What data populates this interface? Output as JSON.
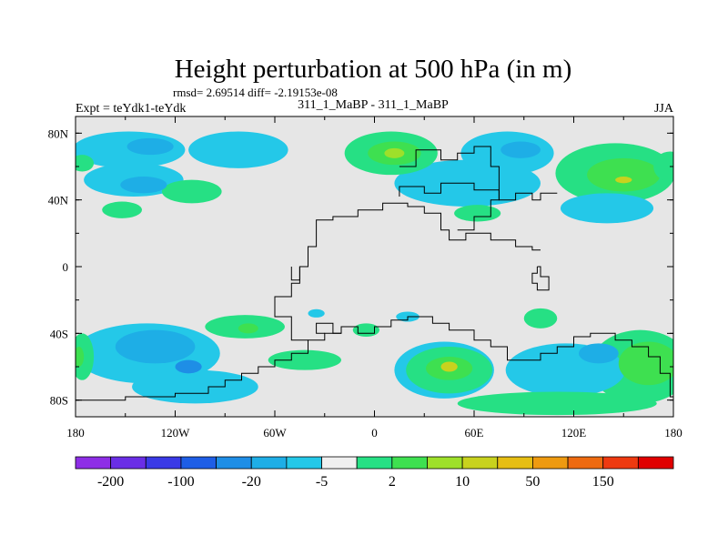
{
  "chart_data": {
    "type": "heatmap",
    "title": "Height perturbation at 500 hPa (in m)",
    "subtitle": "rmsd= 2.69514 diff= -2.19153e-08",
    "left_label": "Expt = teYdk1-teYdk",
    "center_label": "311_1_MaBP - 311_1_MaBP",
    "right_label": "JJA",
    "x_ticks": [
      {
        "value": -180,
        "label": "180"
      },
      {
        "value": -120,
        "label": "120W"
      },
      {
        "value": -60,
        "label": "60W"
      },
      {
        "value": 0,
        "label": "0"
      },
      {
        "value": 60,
        "label": "60E"
      },
      {
        "value": 120,
        "label": "120E"
      },
      {
        "value": 180,
        "label": "180"
      }
    ],
    "y_ticks": [
      {
        "value": 80,
        "label": "80N"
      },
      {
        "value": 40,
        "label": "40N"
      },
      {
        "value": 0,
        "label": "0"
      },
      {
        "value": -40,
        "label": "40S"
      },
      {
        "value": -80,
        "label": "80S"
      }
    ],
    "xlim": [
      -180,
      180
    ],
    "ylim": [
      -90,
      90
    ],
    "background_color": "#e6e6e6",
    "colorbar": {
      "colors": [
        "#8e2ee6",
        "#6a2ee6",
        "#3a3ae6",
        "#1e5ee6",
        "#1e8ee6",
        "#1eaee6",
        "#24c8e8",
        "#f0f0f0",
        "#26e084",
        "#3ee050",
        "#9ee02a",
        "#c8d21e",
        "#e6be14",
        "#ee9a10",
        "#ee6a10",
        "#ee3a10",
        "#e00000"
      ],
      "labels": [
        {
          "boundary": 1,
          "text": "-200"
        },
        {
          "boundary": 3,
          "text": "-100"
        },
        {
          "boundary": 5,
          "text": "-20"
        },
        {
          "boundary": 7,
          "text": "-5"
        },
        {
          "boundary": 9,
          "text": "2"
        },
        {
          "boundary": 11,
          "text": "10"
        },
        {
          "boundary": 13,
          "text": "50"
        },
        {
          "boundary": 15,
          "text": "150"
        }
      ]
    },
    "features": [
      {
        "name": "blob-north-atlantic-neg",
        "lon": -148,
        "lat": 70,
        "rlon": 34,
        "rlat": 11,
        "color_index": 6
      },
      {
        "name": "blob-north-atlantic-neg-core",
        "lon": -135,
        "lat": 72,
        "rlon": 14,
        "rlat": 5,
        "color_index": 5
      },
      {
        "name": "blob-arctic-center-neg",
        "lon": -82,
        "lat": 70,
        "rlon": 30,
        "rlat": 11,
        "color_index": 6
      },
      {
        "name": "blob-north-pacific-neg",
        "lon": -145,
        "lat": 52,
        "rlon": 30,
        "rlat": 10,
        "color_index": 6
      },
      {
        "name": "blob-north-pacific-neg-core",
        "lon": -139,
        "lat": 49,
        "rlon": 14,
        "rlat": 5,
        "color_index": 5
      },
      {
        "name": "blob-north-pacific-pos",
        "lon": -110,
        "lat": 45,
        "rlon": 18,
        "rlat": 7,
        "color_index": 8
      },
      {
        "name": "blob-north-midpac-pos",
        "lon": -152,
        "lat": 34,
        "rlon": 12,
        "rlat": 5,
        "color_index": 8
      },
      {
        "name": "blob-far-west-pos",
        "lon": -176,
        "lat": 62,
        "rlon": 7,
        "rlat": 5,
        "color_index": 8
      },
      {
        "name": "blob-europe-pos",
        "lon": 10,
        "lat": 68,
        "rlon": 28,
        "rlat": 13,
        "color_index": 8
      },
      {
        "name": "blob-europe-pos-mid",
        "lon": 12,
        "lat": 68,
        "rlon": 16,
        "rlat": 7,
        "color_index": 9
      },
      {
        "name": "blob-europe-pos-core",
        "lon": 12,
        "lat": 68,
        "rlon": 6,
        "rlat": 3,
        "color_index": 10
      },
      {
        "name": "blob-asia-neg",
        "lon": 56,
        "lat": 50,
        "rlon": 44,
        "rlat": 14,
        "color_index": 6
      },
      {
        "name": "blob-siberia-neg",
        "lon": 80,
        "lat": 68,
        "rlon": 28,
        "rlat": 13,
        "color_index": 6
      },
      {
        "name": "blob-siberia-neg-core",
        "lon": 88,
        "lat": 70,
        "rlon": 12,
        "rlat": 5,
        "color_index": 5
      },
      {
        "name": "blob-north-america-pos",
        "lon": 145,
        "lat": 56,
        "rlon": 36,
        "rlat": 18,
        "color_index": 8
      },
      {
        "name": "blob-north-america-pos-mid",
        "lon": 150,
        "lat": 55,
        "rlon": 22,
        "rlat": 10,
        "color_index": 9
      },
      {
        "name": "blob-north-america-pos-core",
        "lon": 150,
        "lat": 52,
        "rlon": 5,
        "rlat": 2,
        "color_index": 11
      },
      {
        "name": "blob-far-east-pos",
        "lon": 178,
        "lat": 60,
        "rlon": 10,
        "rlat": 9,
        "color_index": 8
      },
      {
        "name": "blob-pacific-neg",
        "lon": 140,
        "lat": 35,
        "rlon": 28,
        "rlat": 9,
        "color_index": 6
      },
      {
        "name": "blob-indian-pos",
        "lon": 62,
        "lat": 32,
        "rlon": 14,
        "rlat": 5,
        "color_index": 8
      },
      {
        "name": "blob-south-atlantic-neg",
        "lon": -137,
        "lat": -52,
        "rlon": 44,
        "rlat": 18,
        "color_index": 6
      },
      {
        "name": "blob-south-atlantic-neg-mid",
        "lon": -132,
        "lat": -48,
        "rlon": 24,
        "rlat": 10,
        "color_index": 5
      },
      {
        "name": "blob-south-atlantic-neg-core",
        "lon": -112,
        "lat": -60,
        "rlon": 8,
        "rlat": 4,
        "color_index": 4
      },
      {
        "name": "blob-southern-neg-band",
        "lon": -108,
        "lat": -72,
        "rlon": 38,
        "rlat": 10,
        "color_index": 6
      },
      {
        "name": "blob-west-edge-pos",
        "lon": -176,
        "lat": -54,
        "rlon": 7,
        "rlat": 14,
        "color_index": 8
      },
      {
        "name": "blob-west-edge-pos-core",
        "lon": -178,
        "lat": -54,
        "rlon": 3,
        "rlat": 6,
        "color_index": 9
      },
      {
        "name": "blob-south-mid-pos",
        "lon": -78,
        "lat": -36,
        "rlon": 24,
        "rlat": 7,
        "color_index": 8
      },
      {
        "name": "blob-south-mid-pos-core",
        "lon": -76,
        "lat": -37,
        "rlon": 6,
        "rlat": 3,
        "color_index": 9
      },
      {
        "name": "blob-south-center-pos",
        "lon": -42,
        "lat": -56,
        "rlon": 22,
        "rlat": 6,
        "color_index": 8
      },
      {
        "name": "blob-small-south-neg",
        "lon": -35,
        "lat": -28,
        "rlon": 5,
        "rlat": 2.5,
        "color_index": 6
      },
      {
        "name": "blob-small-neg-2",
        "lon": 20,
        "lat": -30,
        "rlon": 7,
        "rlat": 3,
        "color_index": 6
      },
      {
        "name": "blob-small-pos-center",
        "lon": -5,
        "lat": -38,
        "rlon": 8,
        "rlat": 4,
        "color_index": 8
      },
      {
        "name": "blob-south-africa-pos",
        "lon": 45,
        "lat": -62,
        "rlon": 26,
        "rlat": 14,
        "color_index": 8
      },
      {
        "name": "blob-south-africa-pos-mid",
        "lon": 45,
        "lat": -61,
        "rlon": 14,
        "rlat": 7,
        "color_index": 9
      },
      {
        "name": "blob-south-africa-pos-core",
        "lon": 45,
        "lat": -60,
        "rlon": 5,
        "rlat": 3,
        "color_index": 11
      },
      {
        "name": "blob-south-neg-ring",
        "lon": 42,
        "lat": -62,
        "rlon": 30,
        "rlat": 17,
        "color_index": 6
      },
      {
        "name": "blob-indian-small-pos",
        "lon": 100,
        "lat": -31,
        "rlon": 10,
        "rlat": 6,
        "color_index": 8
      },
      {
        "name": "blob-south-east-neg",
        "lon": 115,
        "lat": -62,
        "rlon": 36,
        "rlat": 16,
        "color_index": 6
      },
      {
        "name": "blob-south-east-neg-core",
        "lon": 135,
        "lat": -52,
        "rlon": 12,
        "rlat": 6,
        "color_index": 5
      },
      {
        "name": "blob-south-east-pos",
        "lon": 160,
        "lat": -60,
        "rlon": 30,
        "rlat": 22,
        "color_index": 8
      },
      {
        "name": "blob-south-east-pos-mid",
        "lon": 165,
        "lat": -58,
        "rlon": 18,
        "rlat": 13,
        "color_index": 9
      },
      {
        "name": "blob-southern-pos-band",
        "lon": 110,
        "lat": -82,
        "rlon": 60,
        "rlat": 7,
        "color_index": 8
      }
    ],
    "outline": [
      [
        -180,
        -80
      ],
      [
        -150,
        -80
      ],
      [
        -150,
        -78
      ],
      [
        -120,
        -78
      ],
      [
        -120,
        -76
      ],
      [
        -100,
        -76
      ],
      [
        -100,
        -72
      ],
      [
        -90,
        -72
      ],
      [
        -90,
        -68
      ],
      [
        -80,
        -68
      ],
      [
        -80,
        -64
      ],
      [
        -70,
        -64
      ],
      [
        -70,
        -60
      ],
      [
        -60,
        -60
      ],
      [
        -60,
        -56
      ],
      [
        -50,
        -56
      ],
      [
        -50,
        -52
      ],
      [
        -40,
        -52
      ],
      [
        -40,
        -44
      ],
      [
        -30,
        -44
      ],
      [
        -30,
        -40
      ],
      [
        -20,
        -40
      ],
      [
        -20,
        -36
      ],
      [
        -10,
        -36
      ],
      [
        -10,
        -40
      ],
      [
        0,
        -40
      ],
      [
        0,
        -36
      ],
      [
        10,
        -36
      ],
      [
        10,
        -32
      ],
      [
        20,
        -32
      ],
      [
        20,
        -30
      ],
      [
        35,
        -30
      ],
      [
        35,
        -34
      ],
      [
        45,
        -34
      ],
      [
        45,
        -38
      ],
      [
        60,
        -38
      ],
      [
        60,
        -44
      ],
      [
        70,
        -44
      ],
      [
        70,
        -48
      ],
      [
        80,
        -48
      ],
      [
        80,
        -56
      ],
      [
        100,
        -56
      ],
      [
        100,
        -52
      ],
      [
        110,
        -52
      ],
      [
        110,
        -48
      ],
      [
        120,
        -48
      ],
      [
        120,
        -42
      ],
      [
        130,
        -42
      ],
      [
        130,
        -40
      ],
      [
        145,
        -40
      ],
      [
        145,
        -44
      ],
      [
        155,
        -44
      ],
      [
        155,
        -48
      ],
      [
        165,
        -48
      ],
      [
        165,
        -54
      ],
      [
        172,
        -54
      ],
      [
        172,
        -64
      ],
      [
        178,
        -64
      ],
      [
        178,
        -78
      ],
      [
        180,
        -78
      ]
    ],
    "outline2": [
      [
        -40,
        -44
      ],
      [
        -50,
        -44
      ],
      [
        -50,
        -30
      ],
      [
        -60,
        -30
      ],
      [
        -60,
        -18
      ],
      [
        -50,
        -18
      ],
      [
        -50,
        -10
      ],
      [
        -45,
        -10
      ],
      [
        -45,
        0
      ],
      [
        -40,
        0
      ],
      [
        -40,
        12
      ],
      [
        -35,
        12
      ],
      [
        -35,
        28
      ],
      [
        -25,
        28
      ],
      [
        -25,
        30
      ],
      [
        -10,
        30
      ],
      [
        -10,
        34
      ],
      [
        5,
        34
      ],
      [
        5,
        38
      ],
      [
        20,
        38
      ],
      [
        20,
        36
      ],
      [
        30,
        36
      ],
      [
        30,
        32
      ],
      [
        40,
        32
      ],
      [
        40,
        22
      ],
      [
        45,
        22
      ],
      [
        45,
        16
      ],
      [
        55,
        16
      ],
      [
        55,
        20
      ],
      [
        70,
        20
      ],
      [
        70,
        16
      ],
      [
        85,
        16
      ],
      [
        85,
        12
      ],
      [
        95,
        12
      ],
      [
        95,
        10
      ],
      [
        100,
        10
      ]
    ],
    "outline3": [
      [
        15,
        60
      ],
      [
        25,
        60
      ],
      [
        25,
        70
      ],
      [
        40,
        70
      ],
      [
        40,
        64
      ],
      [
        50,
        64
      ],
      [
        50,
        68
      ],
      [
        60,
        68
      ],
      [
        60,
        72
      ],
      [
        70,
        72
      ],
      [
        70,
        60
      ],
      [
        75,
        60
      ],
      [
        75,
        40
      ],
      [
        70,
        40
      ],
      [
        70,
        30
      ],
      [
        60,
        30
      ],
      [
        60,
        22
      ],
      [
        50,
        22
      ]
    ],
    "outline4": [
      [
        15,
        42
      ],
      [
        15,
        48
      ],
      [
        30,
        48
      ],
      [
        30,
        44
      ],
      [
        40,
        44
      ],
      [
        40,
        50
      ],
      [
        60,
        50
      ],
      [
        60,
        46
      ],
      [
        75,
        46
      ],
      [
        75,
        40
      ],
      [
        85,
        40
      ],
      [
        85,
        44
      ],
      [
        95,
        44
      ],
      [
        95,
        40
      ],
      [
        100,
        40
      ],
      [
        100,
        44
      ],
      [
        110,
        44
      ]
    ],
    "outline5": [
      [
        -20,
        -40
      ],
      [
        -25,
        -40
      ],
      [
        -25,
        -34
      ],
      [
        -35,
        -34
      ],
      [
        -35,
        -40
      ],
      [
        -30,
        -40
      ]
    ],
    "outline6": [
      [
        98,
        0
      ],
      [
        100,
        0
      ],
      [
        100,
        -6
      ],
      [
        105,
        -6
      ],
      [
        105,
        -14
      ],
      [
        98,
        -14
      ],
      [
        98,
        -10
      ],
      [
        95,
        -10
      ],
      [
        95,
        -4
      ],
      [
        98,
        -4
      ],
      [
        98,
        0
      ]
    ],
    "outline7": [
      [
        -50,
        0
      ],
      [
        -50,
        -8
      ],
      [
        -45,
        -8
      ],
      [
        -45,
        0
      ]
    ]
  }
}
